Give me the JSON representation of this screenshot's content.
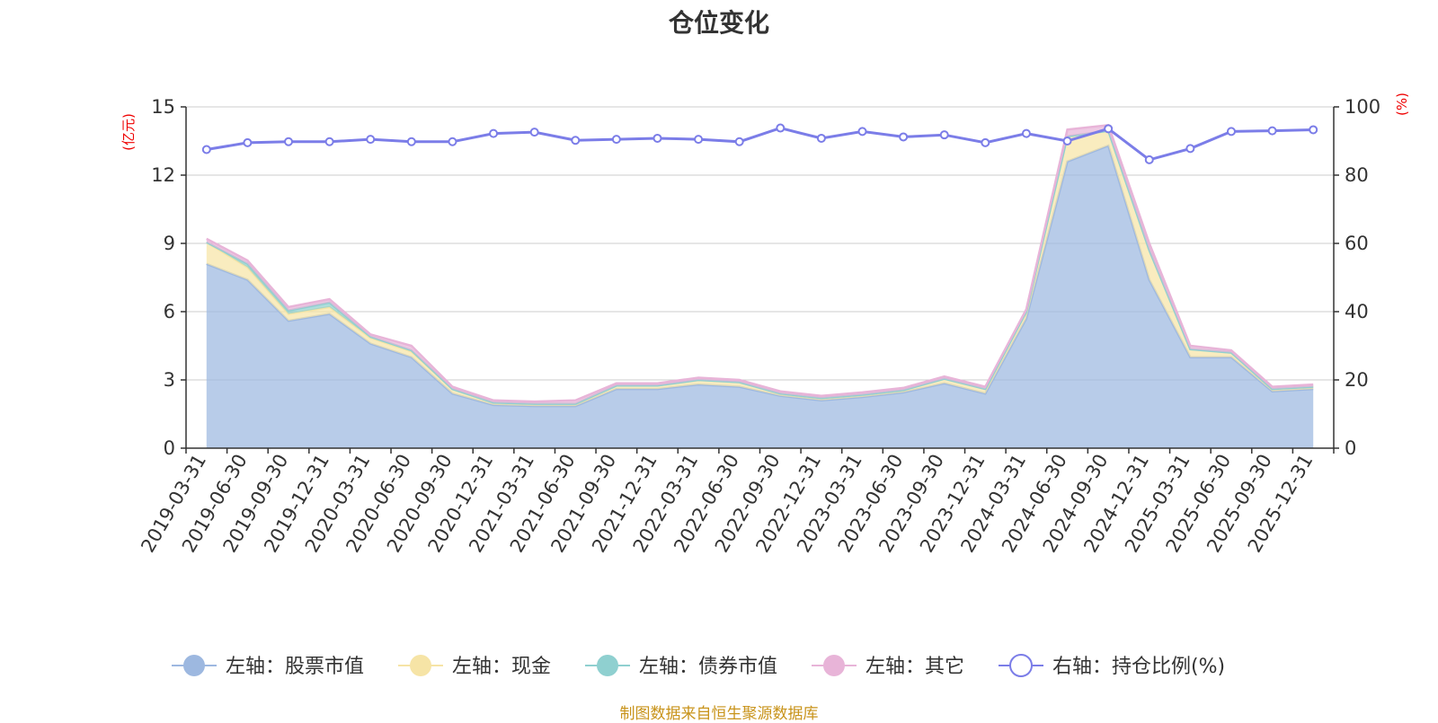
{
  "chart_data": {
    "type": "area",
    "title": "仓位变化",
    "source": "制图数据来自恒生聚源数据库",
    "y_left_label": "(亿元)",
    "y_right_label": "(%)",
    "y_left_lim": [
      0,
      15
    ],
    "y_left_ticks": [
      0,
      3,
      6,
      9,
      12,
      15
    ],
    "y_right_lim": [
      0,
      100
    ],
    "y_right_ticks": [
      0,
      20,
      40,
      60,
      80,
      100
    ],
    "grid": true,
    "legend_position": "bottom",
    "categories": [
      "2019-03-31",
      "2019-06-30",
      "2019-09-30",
      "2019-12-31",
      "2020-03-31",
      "2020-06-30",
      "2020-09-30",
      "2020-12-31",
      "2021-03-31",
      "2021-06-30",
      "2021-09-30",
      "2021-12-31",
      "2022-03-31",
      "2022-06-30",
      "2022-09-30",
      "2022-12-31",
      "2023-03-31",
      "2023-06-30",
      "2023-09-30",
      "2023-12-31",
      "2024-03-31",
      "2024-06-30",
      "2024-09-30",
      "2024-12-31",
      "2025-03-31",
      "2025-06-30",
      "2025-09-30",
      "2025-12-31"
    ],
    "series": [
      {
        "name": "左轴：股票市值",
        "axis": "left",
        "kind": "area",
        "color": "#9db8e0",
        "values": [
          8.1,
          7.4,
          5.6,
          5.9,
          4.6,
          4.0,
          2.4,
          1.9,
          1.85,
          1.85,
          2.6,
          2.6,
          2.8,
          2.7,
          2.3,
          2.1,
          2.25,
          2.45,
          2.85,
          2.4,
          5.7,
          12.6,
          13.3,
          7.4,
          4.0,
          4.0,
          2.5,
          2.6
        ]
      },
      {
        "name": "左轴：现金",
        "axis": "left",
        "kind": "area",
        "color": "#f6e4a6",
        "values": [
          0.95,
          0.55,
          0.3,
          0.3,
          0.25,
          0.25,
          0.2,
          0.1,
          0.1,
          0.1,
          0.15,
          0.15,
          0.2,
          0.2,
          0.1,
          0.1,
          0.1,
          0.1,
          0.2,
          0.2,
          0.3,
          1.1,
          0.65,
          1.3,
          0.35,
          0.2,
          0.1,
          0.1
        ]
      },
      {
        "name": "左轴：债券市值",
        "axis": "left",
        "kind": "area",
        "color": "#8fd0d0",
        "values": [
          0,
          0.15,
          0.15,
          0.2,
          0.05,
          0.05,
          0,
          0,
          0,
          0,
          0,
          0,
          0,
          0,
          0,
          0,
          0,
          0,
          0,
          0,
          0,
          0,
          0,
          0,
          0,
          0,
          0,
          0
        ]
      },
      {
        "name": "左轴：其它",
        "axis": "left",
        "kind": "area",
        "color": "#e8b4d8",
        "values": [
          0.15,
          0.15,
          0.15,
          0.15,
          0.1,
          0.2,
          0.1,
          0.1,
          0.1,
          0.15,
          0.1,
          0.1,
          0.1,
          0.1,
          0.1,
          0.1,
          0.1,
          0.1,
          0.1,
          0.1,
          0.1,
          0.3,
          0.25,
          0.3,
          0.15,
          0.1,
          0.1,
          0.1
        ]
      },
      {
        "name": "右轴：持仓比例(%)",
        "axis": "right",
        "kind": "line",
        "color": "#7b7de8",
        "values": [
          87.5,
          89.5,
          89.8,
          89.8,
          90.5,
          89.8,
          89.8,
          92.2,
          92.6,
          90.2,
          90.5,
          90.8,
          90.5,
          89.8,
          93.8,
          90.8,
          92.8,
          91.2,
          91.8,
          89.5,
          92.2,
          90.0,
          93.6,
          84.5,
          87.8,
          92.8,
          93.0,
          93.3
        ]
      }
    ]
  }
}
